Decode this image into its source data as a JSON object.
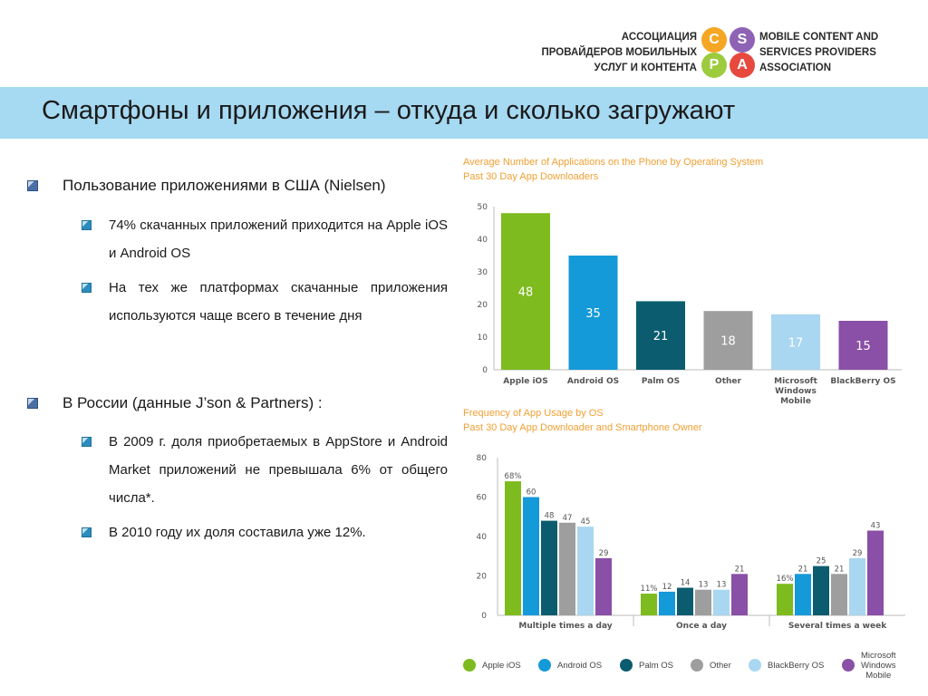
{
  "header": {
    "org_ru_lines": [
      "АССОЦИАЦИЯ",
      "ПРОВАЙДЕРОВ МОБИЛЬНЫХ",
      "УСЛУГ И КОНТЕНТА"
    ],
    "org_en_lines": [
      "MOBILE CONTENT AND",
      "SERVICES PROVIDERS",
      "ASSOCIATION"
    ],
    "logo_letters": [
      {
        "letter": "C",
        "color": "#f5a623"
      },
      {
        "letter": "S",
        "color": "#8e63b5"
      },
      {
        "letter": "P",
        "color": "#9ccc3d"
      },
      {
        "letter": "A",
        "color": "#e8493f"
      }
    ]
  },
  "title": "Смартфоны и приложения – откуда и сколько загружают",
  "bullets": {
    "usa": {
      "heading": "Пользование приложениями в США (Nielsen)",
      "items": [
        "74% скачанных приложений приходится на Apple iOS и Android OS",
        "На тех же платформах скачанные приложения используются чаще всего в течение дня"
      ]
    },
    "russia": {
      "heading": "В России (данные J’son & Partners) :",
      "items": [
        "В 2009 г. доля приобретаемых в AppStore и Android Market приложений не превышала 6% от общего числа*.",
        "В 2010 году их доля составила уже 12%."
      ]
    }
  },
  "colors": {
    "title_band": "#a6d9f2",
    "caption": "#f0a033",
    "apple_ios": "#7dbb1e",
    "android_os": "#1499d9",
    "palm_os": "#0b5c6e",
    "other": "#9e9e9e",
    "blackberry_os": "#a9d6f0",
    "windows_mobile": "#8a4fa6"
  },
  "chart_data": [
    {
      "type": "bar",
      "title": "Average Number of Applications on the Phone by Operating System",
      "subtitle": "Past 30 Day App Downloaders",
      "categories": [
        "Apple iOS",
        "Android OS",
        "Palm OS",
        "Other",
        "Microsoft Windows Mobile",
        "BlackBerry OS"
      ],
      "values": [
        48,
        35,
        21,
        18,
        17,
        15
      ],
      "data_labels": [
        "48",
        "35",
        "21",
        "18",
        "17",
        "15"
      ],
      "colors": [
        "#7dbb1e",
        "#1499d9",
        "#0b5c6e",
        "#9e9e9e",
        "#a9d6f0",
        "#8a4fa6"
      ],
      "ylim": [
        0,
        50
      ],
      "yticks": [
        0,
        10,
        20,
        30,
        40,
        50
      ],
      "grid": false,
      "xlabel": "",
      "ylabel": ""
    },
    {
      "type": "bar",
      "title": "Frequency of App Usage by OS",
      "subtitle": "Past 30 Day App Downloader and Smartphone Owner",
      "categories": [
        "Multiple times a day",
        "Once a day",
        "Several times a week"
      ],
      "series": [
        {
          "name": "Apple iOS",
          "values": [
            68,
            11,
            16
          ],
          "labels": [
            "68%",
            "11%",
            "16%"
          ],
          "color": "#7dbb1e"
        },
        {
          "name": "Android OS",
          "values": [
            60,
            12,
            21
          ],
          "labels": [
            "60",
            "12",
            "21"
          ],
          "color": "#1499d9"
        },
        {
          "name": "Palm OS",
          "values": [
            48,
            14,
            25
          ],
          "labels": [
            "48",
            "14",
            "25"
          ],
          "color": "#0b5c6e"
        },
        {
          "name": "Other",
          "values": [
            47,
            13,
            21
          ],
          "labels": [
            "47",
            "13",
            "21"
          ],
          "color": "#9e9e9e"
        },
        {
          "name": "BlackBerry OS",
          "values": [
            45,
            13,
            29
          ],
          "labels": [
            "45",
            "13",
            "29"
          ],
          "color": "#a9d6f0"
        },
        {
          "name": "Microsoft Windows Mobile",
          "values": [
            29,
            21,
            43
          ],
          "labels": [
            "29",
            "21",
            "43"
          ],
          "color": "#8a4fa6"
        }
      ],
      "ylim": [
        0,
        80
      ],
      "yticks": [
        0,
        20,
        40,
        60,
        80
      ],
      "grid": false,
      "legend_position": "bottom",
      "xlabel": "",
      "ylabel": ""
    }
  ]
}
